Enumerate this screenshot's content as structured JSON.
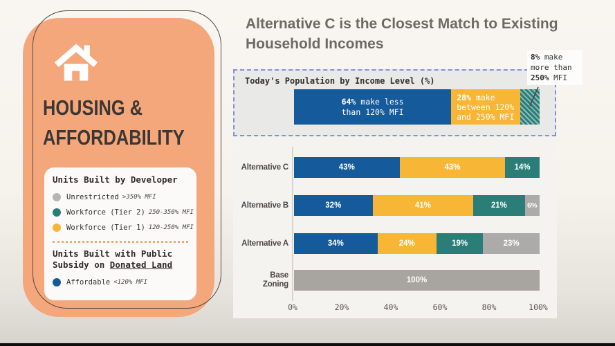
{
  "colors": {
    "blue": "#155a9b",
    "yellow": "#f8b637",
    "teal": "#2b7d78",
    "gray": "#acabaa",
    "base_gray": "#a8a49f",
    "hatch_light": "#8fbcb6",
    "card_orange": "#f5a77c",
    "card_outline": "#4f4942",
    "dashed_border": "#8290dc",
    "legend_gray_dot": "#b5b5b5",
    "divider_dots": "#efa87c",
    "title_gray": "#6d6a66",
    "heading_dark": "#3b3733"
  },
  "header": {
    "title_line1": "Alternative C is the Closest Match to Existing",
    "title_line2": "Household Incomes"
  },
  "sidebar": {
    "heading_line1": "HOUSING &",
    "heading_line2": "AFFORDABILITY",
    "developer_section": {
      "heading": "Units Built by Developer",
      "items": [
        {
          "label": "Unrestricted",
          "qualifier": ">350% MFI",
          "colorKey": "legend_gray_dot"
        },
        {
          "label": "Workforce (Tier 2)",
          "qualifier": "250-350% MFI",
          "colorKey": "teal"
        },
        {
          "label": "Workforce (Tier 1)",
          "qualifier": "120-250% MFI",
          "colorKey": "yellow"
        }
      ]
    },
    "subsidy_section": {
      "heading_line1": "Units Built with Public",
      "heading_line2_prefix": "Subsidy on ",
      "heading_line2_underlined": "Donated Land",
      "items": [
        {
          "label": "Affordable",
          "qualifier": "<120% MFI",
          "colorKey": "blue"
        }
      ]
    }
  },
  "population_box": {
    "title": "Today's Population by Income Level (%)",
    "segments": [
      {
        "value": 64,
        "colorKey": "blue",
        "pattern": "solid",
        "align": "center",
        "lines": [
          "64% make less",
          "than 120% MFI"
        ]
      },
      {
        "value": 28,
        "colorKey": "yellow",
        "pattern": "solid",
        "align": "left",
        "lines": [
          "28% make",
          "between 120%",
          "and 250% MFI"
        ]
      },
      {
        "value": 8,
        "colorKey": "teal",
        "pattern": "hatch",
        "align": "",
        "lines": []
      }
    ],
    "annotation_lines": [
      "8% make",
      "more than",
      "250% MFI"
    ]
  },
  "chart_data": {
    "type": "bar",
    "orientation": "horizontal",
    "stacked": true,
    "title": "Alternative C is the Closest Match to Existing Household Incomes",
    "categories": [
      "Alternative C",
      "Alternative B",
      "Alternative A",
      "Base Zoning"
    ],
    "category_label_lines": [
      [
        "Alternative C"
      ],
      [
        "Alternative B"
      ],
      [
        "Alternative A"
      ],
      [
        "Base",
        "Zoning"
      ]
    ],
    "series": [
      {
        "name": "Affordable (<120% MFI)",
        "colorKey": "blue",
        "values": [
          43,
          32,
          34,
          0
        ]
      },
      {
        "name": "Workforce Tier 1 (120-250% MFI)",
        "colorKey": "yellow",
        "values": [
          43,
          41,
          24,
          0
        ]
      },
      {
        "name": "Workforce Tier 2 (250-350% MFI)",
        "colorKey": "teal",
        "values": [
          14,
          21,
          19,
          0
        ]
      },
      {
        "name": "Unrestricted (>350% MFI)",
        "colorKey": "gray",
        "values": [
          0,
          6,
          23,
          100
        ]
      }
    ],
    "xlim": [
      0,
      100
    ],
    "x_ticks": [
      "0%",
      "20%",
      "40%",
      "60%",
      "80%",
      "100%"
    ],
    "grid": false,
    "legend_position": "left-card",
    "today_population": {
      "title": "Today's Population by Income Level (%)",
      "segments": [
        {
          "name": "make less than 120% MFI",
          "value": 64
        },
        {
          "name": "make between 120% and 250% MFI",
          "value": 28
        },
        {
          "name": "make more than 250% MFI",
          "value": 8
        }
      ]
    }
  }
}
